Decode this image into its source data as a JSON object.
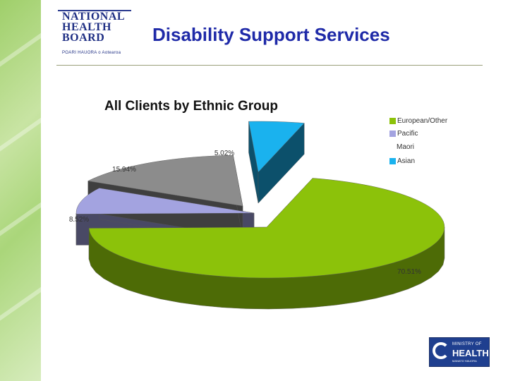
{
  "header": {
    "logo_lines": [
      "NATIONAL",
      "HEALTH",
      "BOARD"
    ],
    "logo_tagline": "POARI HAUORA o Aotearoa",
    "title": "Disability Support Services"
  },
  "footer": {
    "logo_small_text": "MINISTRY OF",
    "logo_main_text": "HEALTH",
    "logo_tagline": "MANATŪ HAUORA"
  },
  "colors": {
    "European/Other": "#8cc20a",
    "Pacific": "#a3a3e0",
    "Maori": "#8c8c8c",
    "Asian": "#1ab2ee",
    "title": "#1f2aa8"
  },
  "chart_data": {
    "type": "pie",
    "title": "All Clients by Ethnic Group",
    "style": "3d-exploded",
    "legend_position": "right",
    "series": [
      {
        "name": "European/Other",
        "value": 70.51,
        "label": "70.51%"
      },
      {
        "name": "Pacific",
        "value": 8.52,
        "label": "8.52%"
      },
      {
        "name": "Maori",
        "value": 15.94,
        "label": "15.94%"
      },
      {
        "name": "Asian",
        "value": 5.02,
        "label": "5.02%"
      }
    ]
  }
}
